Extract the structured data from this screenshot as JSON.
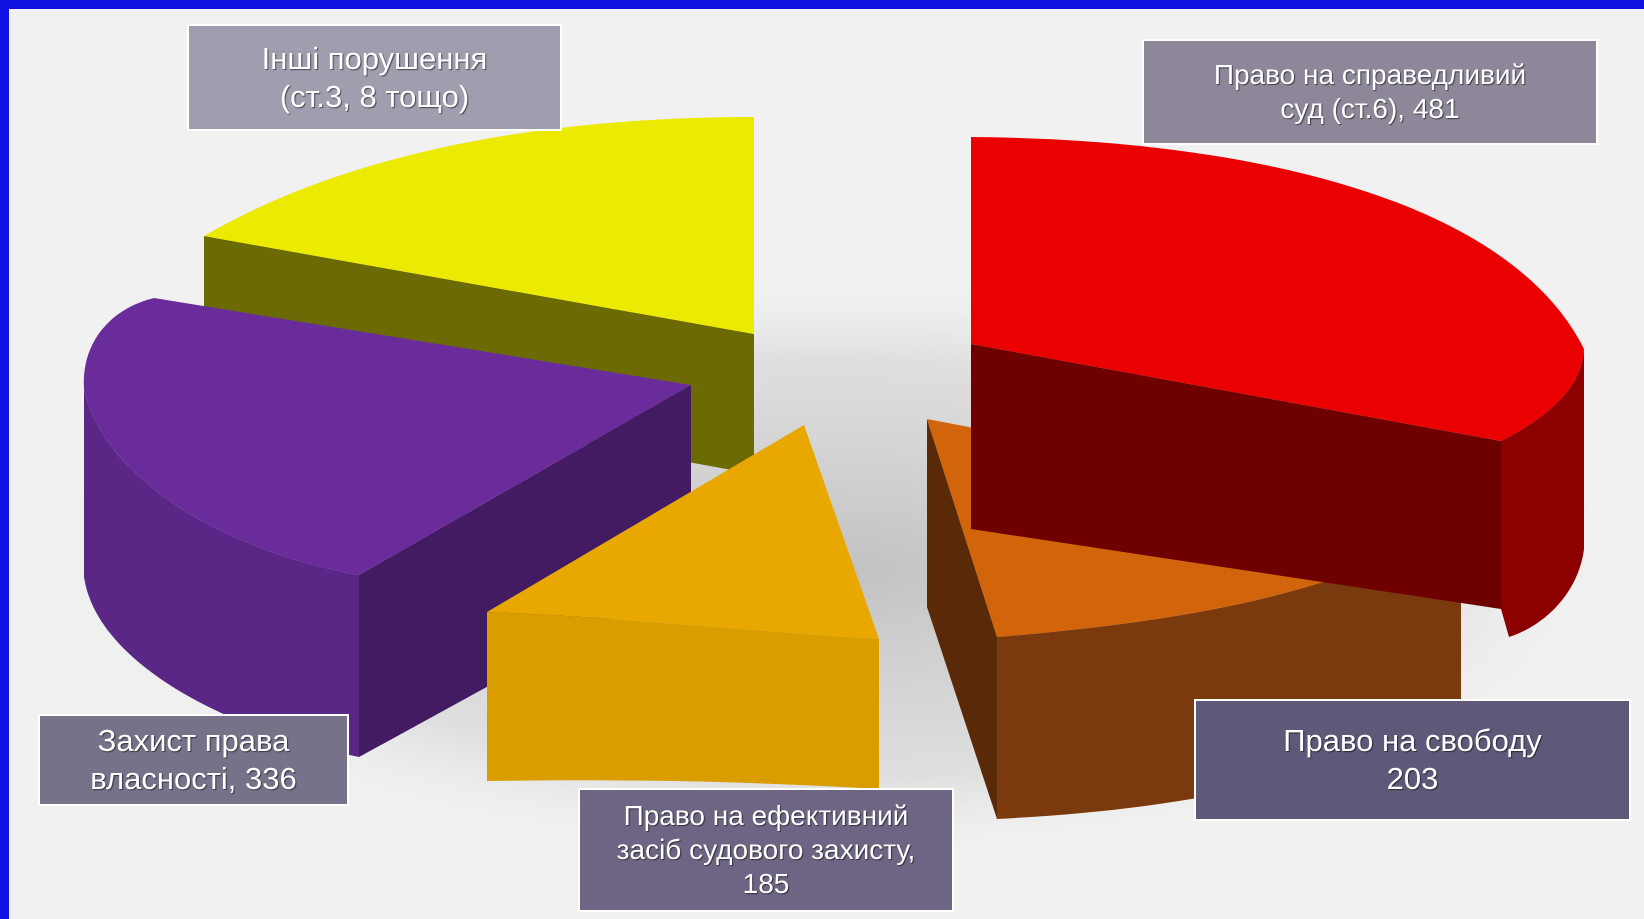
{
  "chart_data": {
    "type": "pie",
    "slices": [
      {
        "label": "Право на справедливий\nсуд (ст.6), 481",
        "value": 481,
        "color": "#ea0000"
      },
      {
        "label": "Право на свободу\n203",
        "value": 203,
        "color": "#d2650c"
      },
      {
        "label": "Право на ефективний\nзасіб судового захисту,\n185",
        "value": 185,
        "color": "#e9a800"
      },
      {
        "label": "Захист права\nвласності, 336",
        "value": 336,
        "color": "#6a2c9a"
      },
      {
        "label": "Інші порушення\n(ст.3, 8 тощо)",
        "value": null,
        "color": "#eeeb00"
      }
    ]
  }
}
